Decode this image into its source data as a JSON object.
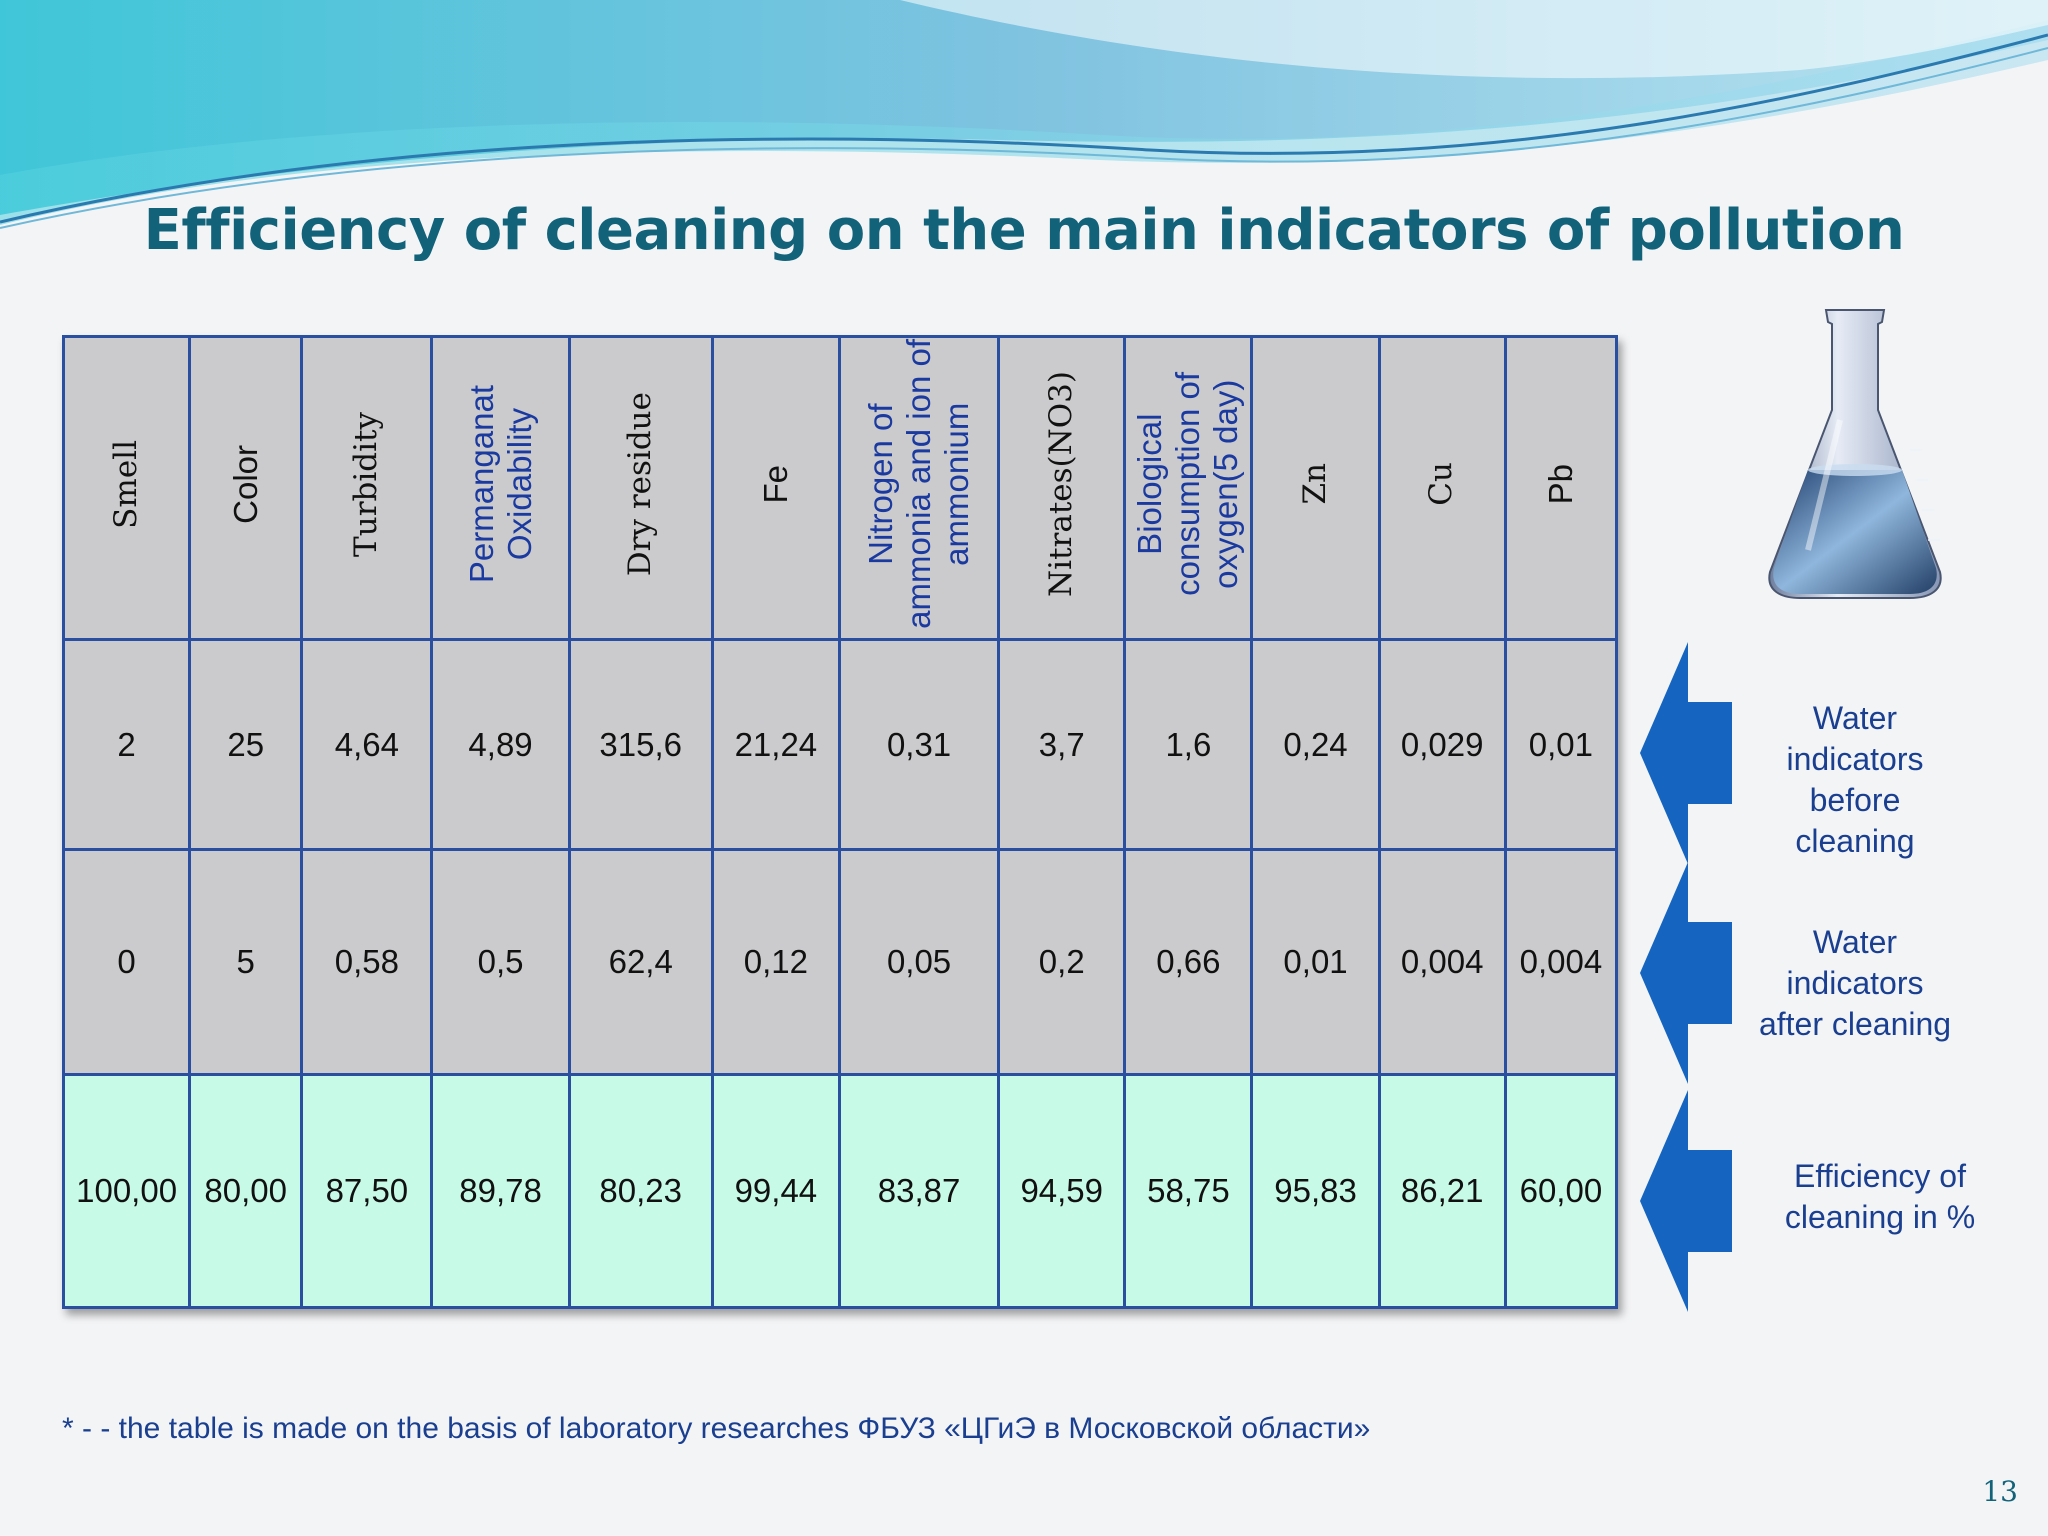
{
  "title": "Efficiency of cleaning on the main indicators of pollution",
  "table": {
    "headers": [
      "Smell",
      "Color",
      "Turbidity",
      "Permanganat\nOxidability",
      "Dry residue",
      "Fe",
      "Nitrogen of\nammonia and ion of\nammonium",
      "Nitrates(NO3)",
      "Biological\nconsumption of\noxygen(5 day)",
      "Zn",
      "Cu",
      "Pb"
    ],
    "rows": {
      "before": [
        "2",
        "25",
        "4,64",
        "4,89",
        "315,6",
        "21,24",
        "0,31",
        "3,7",
        "1,6",
        "0,24",
        "0,029",
        "0,01"
      ],
      "after": [
        "0",
        "5",
        "0,58",
        "0,5",
        "62,4",
        "0,12",
        "0,05",
        "0,2",
        "0,66",
        "0,01",
        "0,004",
        "0,004"
      ],
      "efficiency": [
        "100,00",
        "80,00",
        "87,50",
        "89,78",
        "80,23",
        "99,44",
        "83,87",
        "94,59",
        "58,75",
        "95,83",
        "86,21",
        "60,00"
      ]
    }
  },
  "side_labels": {
    "before": "Water\nindicators\nbefore\ncleaning",
    "after": "Water\nindicators\nafter cleaning",
    "efficiency": "Efficiency of\ncleaning in %"
  },
  "footnote": "*  - - the table is made on the basis of laboratory researches  ФБУЗ «ЦГиЭ в Московской области»",
  "page_number": "13",
  "colors": {
    "title": "#12627a",
    "table_border": "#2a4fa0",
    "cell_gray": "#cbcbcd",
    "cell_mint": "#c8fae8",
    "arrow": "#1565c0",
    "label_blue": "#1a3f90"
  },
  "icons": {
    "flask": "erlenmeyer-flask-icon",
    "arrow": "left-arrow-icon"
  }
}
